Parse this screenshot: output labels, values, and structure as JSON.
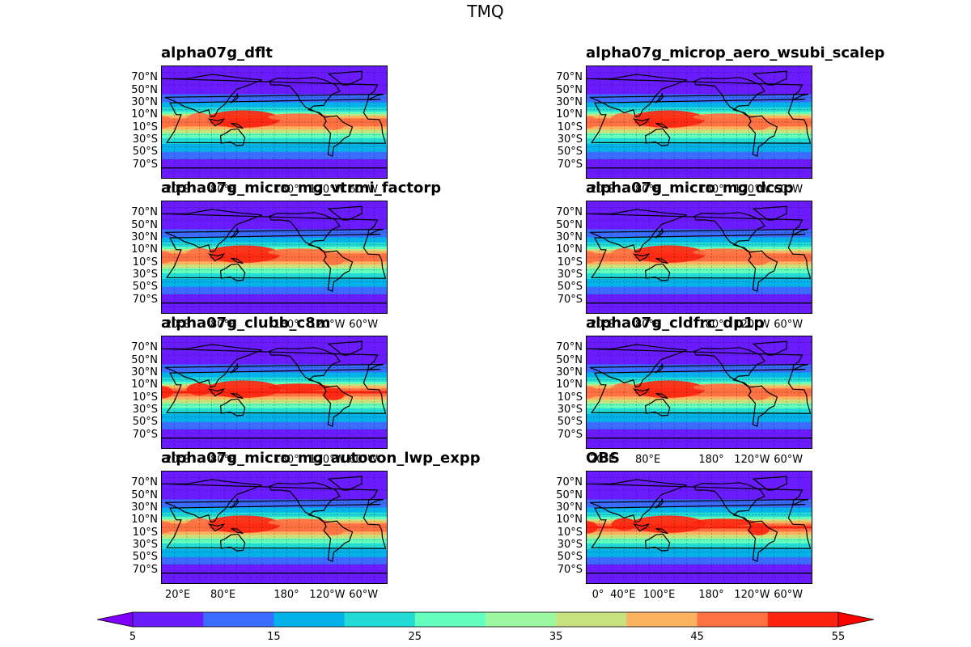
{
  "figure_title": "TMQ",
  "chart_data": {
    "type": "heatmap",
    "title": "TMQ",
    "projection": "global map (filled contours of precipitable water)",
    "panels": [
      {
        "title": "alpha07g_dflt",
        "lon_ticks": [
          "20°E",
          "80°E",
          "180°",
          "120°W",
          "60°W"
        ]
      },
      {
        "title": "alpha07g_microp_aero_wsubi_scalep",
        "lon_ticks": [
          "20°E",
          "80°E",
          "180°",
          "120°W",
          "60°W"
        ]
      },
      {
        "title": "alpha07g_micro_mg_vtrmi_factorp",
        "lon_ticks": [
          "20°E",
          "80°E",
          "180°",
          "120°W",
          "60°W"
        ]
      },
      {
        "title": "alpha07g_micro_mg_dcsp",
        "lon_ticks": [
          "20°E",
          "80°E",
          "180°",
          "120°W",
          "60°W"
        ]
      },
      {
        "title": "alpha07g_clubb_c8m",
        "lon_ticks": [
          "20°E",
          "80°E",
          "180°",
          "120°W",
          "60°W"
        ]
      },
      {
        "title": "alpha07g_cldfrc_dp1p",
        "lon_ticks": [
          "20°E",
          "80°E",
          "180°",
          "120°W",
          "60°W"
        ]
      },
      {
        "title": "alpha07g_micro_mg_autocon_lwp_expp",
        "lon_ticks": [
          "20°E",
          "80°E",
          "180°",
          "120°W",
          "60°W"
        ]
      },
      {
        "title": "OBS",
        "lon_ticks": [
          "0°",
          "40°E",
          "100°E",
          "180°",
          "120°W",
          "60°W"
        ]
      }
    ],
    "lat_ticks": [
      "70°N",
      "50°N",
      "30°N",
      "10°N",
      "10°S",
      "30°S",
      "50°S",
      "70°S"
    ],
    "lat_values": [
      70,
      50,
      30,
      10,
      -10,
      -30,
      -50,
      -70
    ],
    "colorbar": {
      "levels": [
        5,
        10,
        15,
        20,
        25,
        30,
        35,
        40,
        45,
        50,
        55
      ],
      "tick_labels": [
        "5",
        "15",
        "25",
        "35",
        "45",
        "55"
      ],
      "tick_values": [
        5,
        15,
        25,
        35,
        45,
        55
      ],
      "colors": [
        "#6a1cff",
        "#3c6bff",
        "#04b2ea",
        "#22dbd7",
        "#62ffbd",
        "#9cf8a1",
        "#c8e17f",
        "#fdb260",
        "#ff7143",
        "#ff2410"
      ],
      "extend_low_color": "#7f00ff",
      "extend_high_color": "#ff0000"
    }
  }
}
